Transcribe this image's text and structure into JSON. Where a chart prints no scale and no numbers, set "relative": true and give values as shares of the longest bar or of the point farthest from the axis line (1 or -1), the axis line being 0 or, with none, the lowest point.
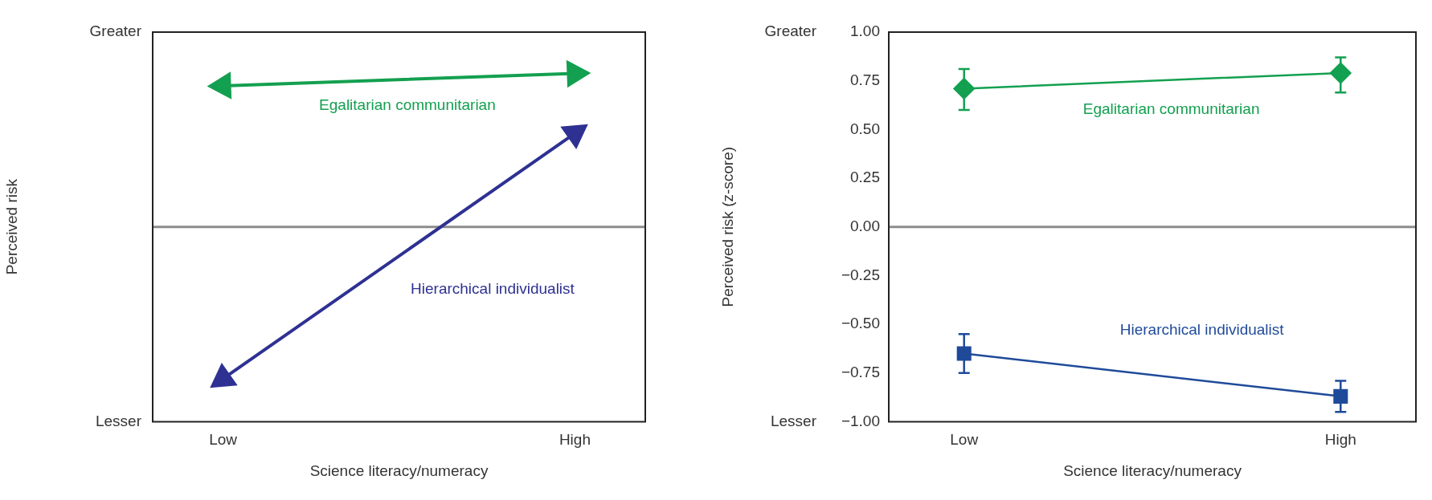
{
  "chart_data": [
    {
      "type": "line",
      "relative": true,
      "xlabel": "Science literacy/numeracy",
      "ylabel": "Perceived risk",
      "categories": [
        "Low",
        "High"
      ],
      "marker": "triangle",
      "line_style": "solid",
      "series": [
        {
          "name": "Egalitarian communitarian",
          "color": "#13a050",
          "values": [
            0.92,
            1
          ]
        },
        {
          "name": "Hierarchical individualist",
          "color": "#2e3192",
          "values": [
            -0.99,
            0.61
          ]
        }
      ],
      "ref_lines": [
        {
          "axis": "y",
          "value": 0,
          "color": "#8c8c8c"
        }
      ],
      "annotations": [
        "Greater",
        "Lesser"
      ]
    },
    {
      "type": "line",
      "xlabel": "Science literacy/numeracy",
      "ylabel": "Perceived risk (z-score)",
      "categories": [
        "Low",
        "High"
      ],
      "ylim": [
        -1,
        1
      ],
      "yticks": [
        {
          "value": 1,
          "label": "1.00"
        },
        {
          "value": 0.75,
          "label": "0.75"
        },
        {
          "value": 0.5,
          "label": "0.50"
        },
        {
          "value": 0.25,
          "label": "0.25"
        },
        {
          "value": 0,
          "label": "0.00"
        },
        {
          "value": -0.25,
          "label": "−0.25"
        },
        {
          "value": -0.5,
          "label": "−0.50"
        },
        {
          "value": -0.75,
          "label": "−0.75"
        },
        {
          "value": -1,
          "label": "−1.00"
        }
      ],
      "line_style": "solid",
      "series": [
        {
          "name": "Egalitarian communitarian",
          "color": "#13a050",
          "marker": "diamond",
          "values": [
            0.71,
            0.79
          ],
          "errors": [
            [
              0.6,
              0.81
            ],
            [
              0.69,
              0.87
            ]
          ]
        },
        {
          "name": "Hierarchical individualist",
          "color": "#1f4a9a",
          "marker": "square",
          "values": [
            -0.65,
            -0.87
          ],
          "errors": [
            [
              -0.75,
              -0.55
            ],
            [
              -0.95,
              -0.79
            ]
          ]
        }
      ],
      "ref_lines": [
        {
          "axis": "y",
          "value": 0,
          "color": "#8c8c8c"
        }
      ],
      "annotations": [
        "Greater",
        "Lesser"
      ]
    }
  ]
}
